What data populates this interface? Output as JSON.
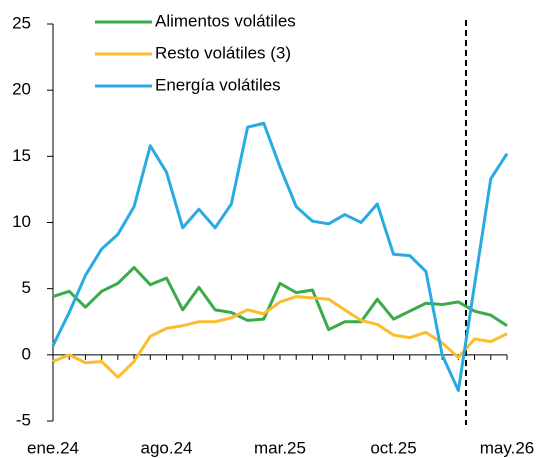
{
  "chart_data": {
    "type": "line",
    "categories": [
      "ene.24",
      null,
      null,
      null,
      null,
      null,
      null,
      "ago.24",
      null,
      null,
      null,
      null,
      null,
      null,
      "mar.25",
      null,
      null,
      null,
      null,
      null,
      null,
      "oct.25",
      null,
      null,
      null,
      null,
      null,
      null,
      "may.26"
    ],
    "series": [
      {
        "name": "Alimentos volátiles",
        "color": "#3aaa4a",
        "values": [
          4.4,
          4.8,
          3.6,
          4.8,
          5.4,
          6.6,
          5.3,
          5.8,
          3.4,
          5.1,
          3.4,
          3.2,
          2.6,
          2.7,
          5.4,
          4.7,
          4.9,
          1.9,
          2.5,
          2.5,
          4.2,
          2.7,
          3.3,
          3.9,
          3.8,
          4.0,
          3.3,
          3.0,
          2.2
        ]
      },
      {
        "name": "Resto volátiles (3)",
        "color": "#fbbd2d",
        "values": [
          -0.5,
          0,
          -0.6,
          -0.5,
          -1.7,
          -0.5,
          1.4,
          2.0,
          2.2,
          2.5,
          2.5,
          2.8,
          3.4,
          3.1,
          4.0,
          4.4,
          4.3,
          4.2,
          3.4,
          2.6,
          2.3,
          1.5,
          1.3,
          1.7,
          0.9,
          -0.2,
          1.2,
          1.0,
          1.6
        ]
      },
      {
        "name": "Energía volátiles",
        "color": "#29abe2",
        "values": [
          0.7,
          3.2,
          6.0,
          8.0,
          9.1,
          11.2,
          15.8,
          13.8,
          9.6,
          11.0,
          9.6,
          11.4,
          17.2,
          17.5,
          14.2,
          11.2,
          10.1,
          9.9,
          10.6,
          10.0,
          11.4,
          7.6,
          7.5,
          6.3,
          0,
          -2.7,
          5.3,
          13.3,
          15.2
        ]
      }
    ],
    "ylim": [
      -5,
      25
    ],
    "yticks": [
      -5,
      0,
      5,
      10,
      15,
      20,
      25
    ],
    "legend": "upper-left"
  }
}
